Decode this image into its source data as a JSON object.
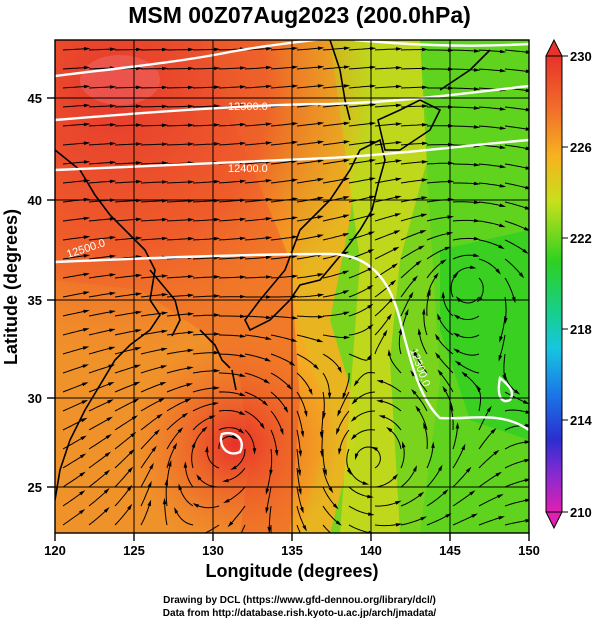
{
  "title": "MSM 00Z07Aug2023 (200.0hPa)",
  "axes": {
    "xlabel": "Longitude (degrees)",
    "ylabel": "Latitude  (degrees)",
    "xticks": [
      "120",
      "125",
      "130",
      "135",
      "140",
      "145",
      "150"
    ],
    "yticks": [
      "25",
      "30",
      "35",
      "40",
      "45"
    ]
  },
  "colorbar": {
    "ticks": [
      "230",
      "226",
      "222",
      "218",
      "214",
      "210"
    ]
  },
  "contour_labels": [
    "12300.0",
    "12400.0",
    "12500.0",
    "12300.0"
  ],
  "credits": {
    "line1": "Drawing by DCL (https://www.gfd-dennou.org/library/dcl/)",
    "line2": "Data from http://database.rish.kyoto-u.ac.jp/arch/jmadata/"
  },
  "chart_data": {
    "type": "heatmap",
    "title": "MSM 00Z07Aug2023 (200.0hPa)",
    "xlabel": "Longitude (degrees)",
    "ylabel": "Latitude  (degrees)",
    "xlim": [
      120,
      150
    ],
    "ylim": [
      22.6,
      47.6
    ],
    "colorbar_range": [
      210,
      230
    ],
    "colorbar_ticks": [
      230,
      226,
      222,
      218,
      214,
      210
    ],
    "grid": true,
    "colors": {
      "warm_max": "#e8322a",
      "warm": "#f26a2a",
      "orange": "#f7a21f",
      "yellow": "#d6e21a",
      "green": "#3fd421",
      "contour": "#ffffff",
      "coast": "#000000"
    }
  }
}
